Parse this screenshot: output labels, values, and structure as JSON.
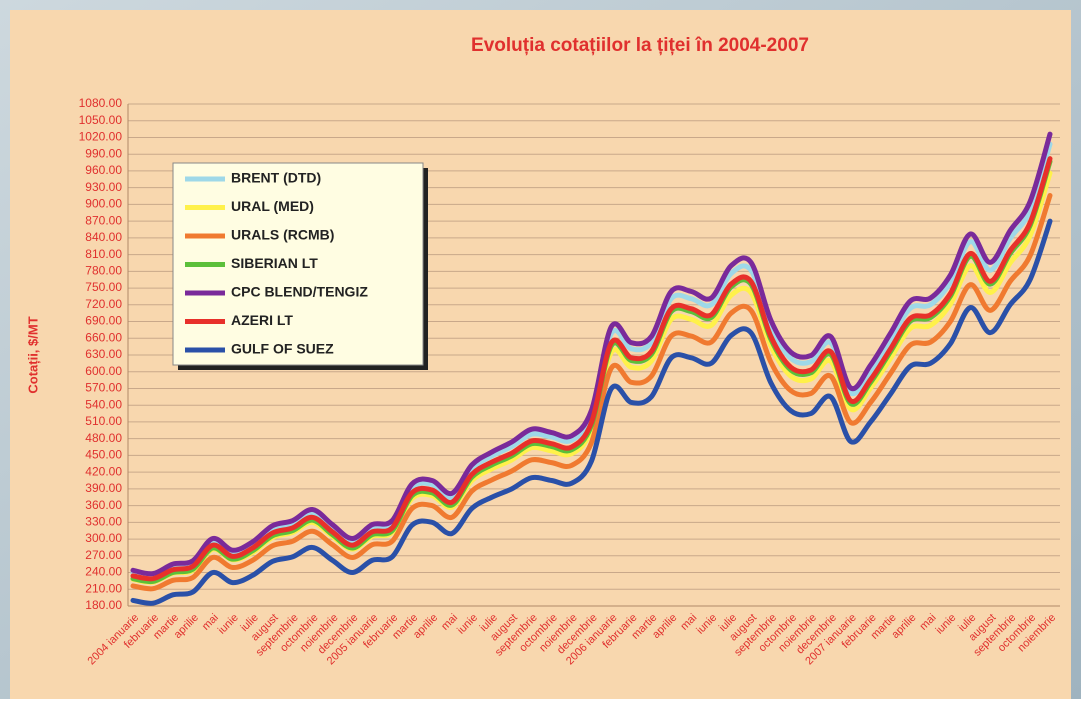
{
  "chart_data": {
    "type": "line",
    "title": "Evoluția cotațiilor la țiței în 2004-2007",
    "y_label": "Cotații, $/MT",
    "legend": "upper left",
    "grid": true,
    "categories": [
      "2004 ianuarie",
      "februarie",
      "martie",
      "aprilie",
      "mai",
      "iunie",
      "iulie",
      "august",
      "septembrie",
      "octombrie",
      "noiembrie",
      "decembrie",
      "2005 ianuarie",
      "februarie",
      "martie",
      "aprilie",
      "mai",
      "iunie",
      "iulie",
      "august",
      "septembrie",
      "octombrie",
      "noiembrie",
      "decembrie",
      "2006 ianuarie",
      "februarie",
      "martie",
      "aprilie",
      "mai",
      "iunie",
      "iulie",
      "august",
      "septembrie",
      "octombrie",
      "noiembrie",
      "decembrie",
      "2007 ianuarie",
      "februarie",
      "martie",
      "aprilie",
      "mai",
      "iunie",
      "iulie",
      "august",
      "septembrie",
      "octombrie",
      "noiembrie"
    ],
    "ylim": [
      180,
      1080
    ],
    "yticks": [
      {
        "value": 180,
        "label": "180.00"
      },
      {
        "value": 210,
        "label": "210.00"
      },
      {
        "value": 240,
        "label": "240.00"
      },
      {
        "value": 270,
        "label": "270.00"
      },
      {
        "value": 300,
        "label": "300.00"
      },
      {
        "value": 330,
        "label": "330.00"
      },
      {
        "value": 360,
        "label": "360.00"
      },
      {
        "value": 390,
        "label": "390.00"
      },
      {
        "value": 420,
        "label": "420.00"
      },
      {
        "value": 450,
        "label": "450.00"
      },
      {
        "value": 480,
        "label": "480.00"
      },
      {
        "value": 510,
        "label": "510.00"
      },
      {
        "value": 540,
        "label": "540.00"
      },
      {
        "value": 570,
        "label": "570.00"
      },
      {
        "value": 600,
        "label": "600.00"
      },
      {
        "value": 630,
        "label": "630.00"
      },
      {
        "value": 660,
        "label": "660.00"
      },
      {
        "value": 690,
        "label": "690.00"
      },
      {
        "value": 720,
        "label": "720.00"
      },
      {
        "value": 750,
        "label": "750.00"
      },
      {
        "value": 780,
        "label": "780.00"
      },
      {
        "value": 810,
        "label": "810.00"
      },
      {
        "value": 840,
        "label": "840.00"
      },
      {
        "value": 870,
        "label": "870.00"
      },
      {
        "value": 900,
        "label": "900.00"
      },
      {
        "value": 930,
        "label": "930.00"
      },
      {
        "value": 960,
        "label": "960.00"
      },
      {
        "value": 990,
        "label": "990.00"
      },
      {
        "value": 1020,
        "label": "1020.00"
      },
      {
        "value": 1050,
        "label": "1050.00"
      },
      {
        "value": 1080,
        "label": "1080.00"
      }
    ],
    "series": [
      {
        "name": "BRENT (DTD)",
        "color": "#9ed8e8",
        "values": [
          240,
          234,
          251,
          257,
          296,
          276,
          291,
          319,
          328,
          347,
          321,
          296,
          321,
          328,
          392,
          398,
          375,
          426,
          449,
          466,
          488,
          483,
          477,
          522,
          669,
          641,
          652,
          731,
          731,
          720,
          776,
          782,
          680,
          624,
          618,
          652,
          562,
          601,
          658,
          714,
          720,
          760,
          833,
          782,
          839,
          889,
          1008
        ]
      },
      {
        "name": "URAL (MED)",
        "color": "#fff14a",
        "values": [
          228,
          223,
          239,
          244,
          282,
          263,
          276,
          303,
          312,
          330,
          305,
          282,
          305,
          312,
          373,
          378,
          357,
          405,
          426,
          442,
          464,
          458,
          453,
          496,
          635,
          608,
          619,
          694,
          694,
          683,
          737,
          742,
          646,
          592,
          587,
          619,
          533,
          571,
          624,
          678,
          683,
          721,
          790,
          742,
          795,
          844,
          956
        ]
      },
      {
        "name": "URALS (RCMB)",
        "color": "#f07a30",
        "values": [
          216,
          211,
          226,
          231,
          267,
          249,
          262,
          288,
          296,
          314,
          290,
          267,
          290,
          296,
          355,
          360,
          339,
          386,
          406,
          422,
          442,
          437,
          432,
          473,
          607,
          581,
          592,
          664,
          664,
          653,
          705,
          710,
          617,
          566,
          561,
          592,
          509,
          545,
          597,
          648,
          653,
          690,
          756,
          710,
          762,
          808,
          916
        ]
      },
      {
        "name": "SIBERIAN LT",
        "color": "#5cbf3a",
        "values": [
          229,
          224,
          240,
          246,
          284,
          264,
          279,
          306,
          315,
          334,
          308,
          284,
          308,
          315,
          378,
          383,
          361,
          411,
          433,
          449,
          471,
          466,
          460,
          504,
          647,
          620,
          631,
          708,
          708,
          697,
          752,
          757,
          658,
          603,
          598,
          631,
          543,
          581,
          636,
          691,
          697,
          735,
          807,
          757,
          812,
          862,
          977
        ]
      },
      {
        "name": "CPC BLEND/TENGIZ",
        "color": "#7a2a9a",
        "values": [
          244,
          238,
          255,
          261,
          301,
          280,
          295,
          324,
          333,
          353,
          326,
          301,
          326,
          333,
          399,
          405,
          382,
          433,
          456,
          474,
          497,
          491,
          485,
          531,
          681,
          652,
          663,
          744,
          744,
          732,
          790,
          796,
          692,
          635,
          629,
          663,
          571,
          612,
          669,
          727,
          732,
          773,
          847,
          796,
          853,
          905,
          1026
        ]
      },
      {
        "name": "AZERI LT",
        "color": "#e8302a",
        "values": [
          234,
          229,
          245,
          251,
          289,
          269,
          284,
          311,
          320,
          339,
          313,
          289,
          313,
          320,
          383,
          388,
          366,
          416,
          438,
          454,
          476,
          471,
          465,
          509,
          652,
          625,
          636,
          713,
          713,
          702,
          757,
          762,
          663,
          608,
          603,
          636,
          548,
          586,
          641,
          696,
          702,
          740,
          812,
          762,
          817,
          867,
          982
        ]
      },
      {
        "name": "GULF OF SUEZ",
        "color": "#2a50a8",
        "values": [
          190,
          185,
          200,
          205,
          240,
          222,
          235,
          260,
          268,
          285,
          262,
          240,
          262,
          268,
          325,
          330,
          310,
          355,
          375,
          390,
          410,
          405,
          400,
          440,
          570,
          545,
          555,
          625,
          625,
          615,
          665,
          670,
          580,
          530,
          525,
          555,
          475,
          510,
          560,
          610,
          615,
          650,
          715,
          670,
          720,
          765,
          870
        ]
      }
    ]
  }
}
